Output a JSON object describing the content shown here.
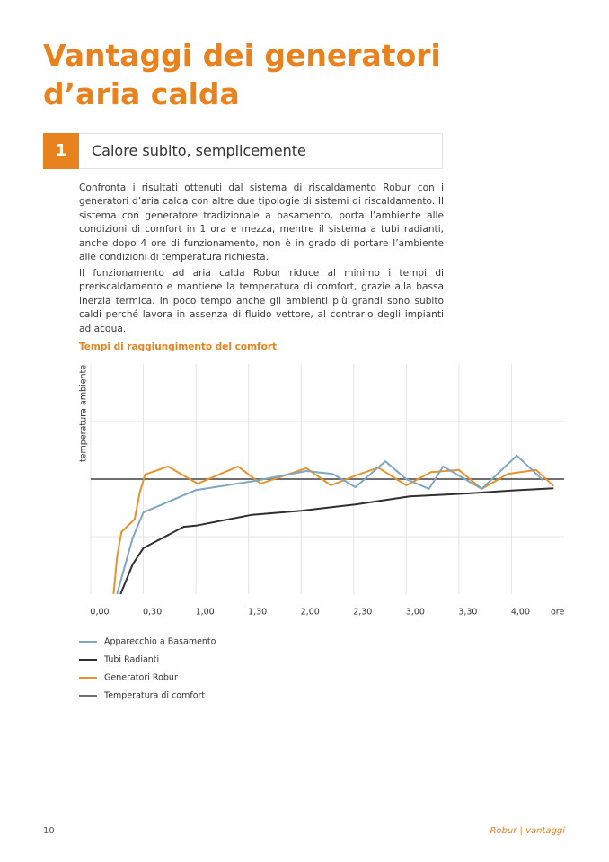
{
  "header": {
    "title_lines": [
      "Vantaggi dei generatori",
      "d’aria calda"
    ]
  },
  "section": {
    "number": "1",
    "title": "Calore subito, semplicemente"
  },
  "paragraphs": [
    "Confronta i risultati ottenuti dal sistema di riscaldamento Robur con i generatori d’aria calda con altre due tipologie di sistemi di riscaldamento. Il sistema con generatore tradizionale a basamento, porta l’ambiente alle condizioni di comfort in 1 ora e mezza, mentre il sistema a tubi radianti, anche dopo 4 ore di funzionamento, non è in grado di portare l’ambiente alle condizioni di temperatura richiesta.",
    "Il funzionamento ad aria calda Robur riduce al minimo i tempi di preriscaldamento e mantiene la temperatura di comfort, grazie alla bassa inerzia termica. In poco tempo anche gli ambienti più grandi sono subito caldi perché lavora in assenza di fluido vettore, al contrario degli impianti ad acqua."
  ],
  "chart_data": {
    "type": "line",
    "title": "Tempi di raggiungimento del comfort",
    "x_label": "ore",
    "y_label": "temperatura ambiente",
    "xlim": [
      0,
      270
    ],
    "ylim": [
      0,
      4
    ],
    "xticks": [
      {
        "value": 0,
        "label": "0,00"
      },
      {
        "value": 30,
        "label": "0,30"
      },
      {
        "value": 60,
        "label": "1,00"
      },
      {
        "value": 90,
        "label": "1,30"
      },
      {
        "value": 120,
        "label": "2,00"
      },
      {
        "value": 150,
        "label": "2,30"
      },
      {
        "value": 180,
        "label": "3,00"
      },
      {
        "value": 210,
        "label": "3,30"
      },
      {
        "value": 240,
        "label": "4,00"
      }
    ],
    "yticks": [
      1,
      2,
      3
    ],
    "grid": true,
    "series": [
      {
        "name": "Apparecchio a Basamento",
        "color": "#7fa7bf",
        "x": [
          15,
          24,
          30,
          60,
          94,
          123,
          138,
          151,
          168,
          180,
          193,
          201,
          223,
          243,
          258
        ],
        "values": [
          0,
          0.98,
          1.42,
          1.81,
          1.97,
          2.14,
          2.09,
          1.86,
          2.31,
          2.0,
          1.83,
          2.22,
          1.83,
          2.41,
          1.98
        ]
      },
      {
        "name": "Tubi Radianti",
        "color": "#2f2f2f",
        "x": [
          17,
          24,
          30,
          53,
          60,
          92,
          120,
          151,
          182,
          215,
          240,
          264
        ],
        "values": [
          0,
          0.52,
          0.8,
          1.17,
          1.19,
          1.38,
          1.45,
          1.56,
          1.7,
          1.75,
          1.8,
          1.84
        ]
      },
      {
        "name": "Generatori Robur",
        "color": "#e8922e",
        "x": [
          13,
          15,
          17.5,
          25,
          28,
          31,
          44,
          61,
          84,
          97,
          123,
          137,
          151,
          164,
          180,
          194,
          210,
          223,
          238,
          254,
          264
        ],
        "values": [
          0,
          0.64,
          1.08,
          1.3,
          1.77,
          2.08,
          2.22,
          1.92,
          2.22,
          1.92,
          2.19,
          1.89,
          2.06,
          2.2,
          1.89,
          2.12,
          2.16,
          1.83,
          2.09,
          2.16,
          1.88
        ]
      },
      {
        "name": "Temperatura di comfort",
        "color": "#6f6f6f",
        "x": [
          0,
          270
        ],
        "values": [
          2,
          2
        ]
      }
    ]
  },
  "footer": {
    "page": "10",
    "brand": "Robur",
    "section": "vantaggi"
  }
}
